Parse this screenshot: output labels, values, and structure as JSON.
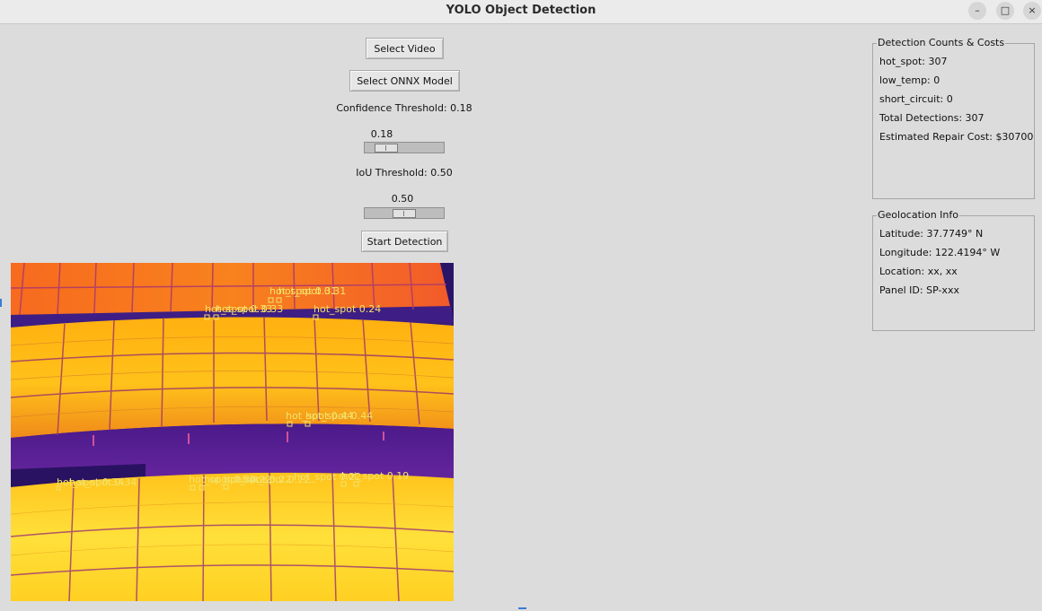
{
  "window": {
    "title": "YOLO Object Detection",
    "controls": {
      "minimize": "–",
      "maximize": "□",
      "close": "×"
    }
  },
  "controls": {
    "select_video": "Select Video",
    "select_model": "Select ONNX Model",
    "confidence_label": "Confidence Threshold: 0.18",
    "confidence_value": "0.18",
    "confidence_level": 0.18,
    "iou_label": "IoU Threshold: 0.50",
    "iou_value": "0.50",
    "iou_level": 0.5,
    "start_detection": "Start Detection"
  },
  "counts_panel": {
    "title": "Detection Counts & Costs",
    "hot_spot": "hot_spot: 307",
    "low_temp": "low_temp: 0",
    "short_circuit": "short_circuit: 0",
    "total": "Total Detections: 307",
    "cost": "Estimated Repair Cost: $30700"
  },
  "geo_panel": {
    "title": "Geolocation Info",
    "latitude": "Latitude: 37.7749° N",
    "longitude": "Longitude: 122.4194° W",
    "location": "Location: xx, xx",
    "panel_id": "Panel ID: SP-xxx"
  },
  "video_overlay": {
    "labels": [
      "hot_spot 0.31",
      "hot_spot 0.33",
      "hot_spot 0.24",
      "hot_spot 0.44",
      "hot_spot 0.34",
      "hot_spot 0.22",
      "hot_spot 0.19"
    ]
  },
  "colors": {
    "background": "#dcdcdc",
    "overlay_label": "#f2e36a",
    "thermal_hot": "#ffd21a",
    "thermal_cold": "#3a1a8c"
  }
}
